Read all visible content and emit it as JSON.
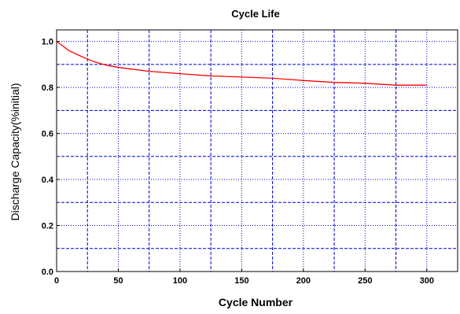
{
  "chart_data": {
    "type": "line",
    "title": "Cycle Life",
    "xlabel": "Cycle Number",
    "ylabel": "Discharge Capacity(%initial)",
    "xlim": [
      0,
      325
    ],
    "ylim": [
      0.0,
      1.05
    ],
    "x_ticks": [
      "0",
      "50",
      "100",
      "150",
      "200",
      "250",
      "300"
    ],
    "y_ticks": [
      "0.0",
      "0.2",
      "0.4",
      "0.6",
      "0.8",
      "1.0"
    ],
    "grid": true,
    "series": [
      {
        "color": "#ff0000",
        "x": [
          0,
          10,
          20,
          30,
          40,
          50,
          60,
          75,
          100,
          125,
          150,
          175,
          200,
          225,
          250,
          275,
          300
        ],
        "y": [
          1.0,
          0.96,
          0.935,
          0.912,
          0.897,
          0.887,
          0.88,
          0.87,
          0.86,
          0.85,
          0.845,
          0.84,
          0.83,
          0.822,
          0.818,
          0.81,
          0.81
        ]
      }
    ]
  },
  "colors": {
    "grid": "#0000cc",
    "line": "#ff0000",
    "axis": "#000000"
  }
}
